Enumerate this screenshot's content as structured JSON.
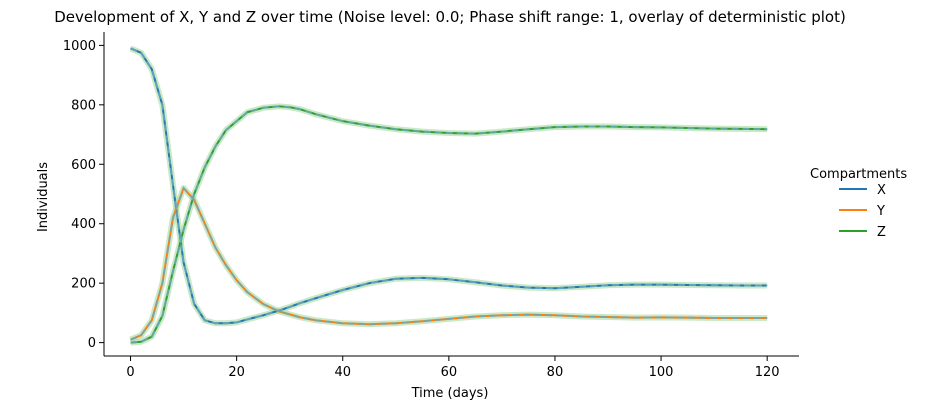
{
  "chart_data": {
    "type": "line",
    "title": "Development of X, Y and Z over time (Noise level: 0.0; Phase shift range: 1, overlay of deterministic plot)",
    "xlabel": "Time (days)",
    "ylabel": "Individuals",
    "xlim": [
      -5,
      126
    ],
    "ylim": [
      -45,
      1045
    ],
    "xticks": [
      0,
      20,
      40,
      60,
      80,
      100,
      120
    ],
    "yticks": [
      0,
      200,
      400,
      600,
      800,
      1000
    ],
    "legend_title": "Compartments",
    "legend_position": "right",
    "grid": false,
    "x": [
      0,
      2,
      4,
      6,
      8,
      10,
      12,
      14,
      16,
      18,
      20,
      22,
      25,
      28,
      30,
      32,
      35,
      40,
      45,
      50,
      55,
      60,
      65,
      70,
      75,
      80,
      85,
      90,
      95,
      100,
      105,
      110,
      115,
      120
    ],
    "series": [
      {
        "name": "X",
        "color": "#1f77b4",
        "values": [
          990,
          975,
          920,
          800,
          530,
          270,
          130,
          75,
          65,
          65,
          68,
          78,
          92,
          108,
          120,
          133,
          150,
          177,
          200,
          215,
          218,
          213,
          203,
          192,
          185,
          183,
          188,
          193,
          195,
          195,
          194,
          193,
          192,
          192
        ]
      },
      {
        "name": "Y",
        "color": "#ff7f0e",
        "values": [
          10,
          25,
          75,
          200,
          420,
          520,
          480,
          400,
          320,
          260,
          210,
          170,
          130,
          105,
          95,
          85,
          75,
          65,
          62,
          65,
          72,
          80,
          88,
          92,
          94,
          92,
          88,
          86,
          84,
          85,
          84,
          83,
          83,
          83
        ]
      },
      {
        "name": "Z",
        "color": "#2ca02c",
        "values": [
          0,
          3,
          20,
          90,
          240,
          380,
          500,
          590,
          660,
          715,
          745,
          775,
          790,
          795,
          792,
          785,
          768,
          745,
          730,
          718,
          710,
          705,
          703,
          710,
          718,
          725,
          727,
          727,
          725,
          724,
          722,
          720,
          719,
          718
        ]
      }
    ],
    "overlay": {
      "style": "dashed",
      "color": "#6fa8b8",
      "band_color": "#a6dba0"
    }
  }
}
